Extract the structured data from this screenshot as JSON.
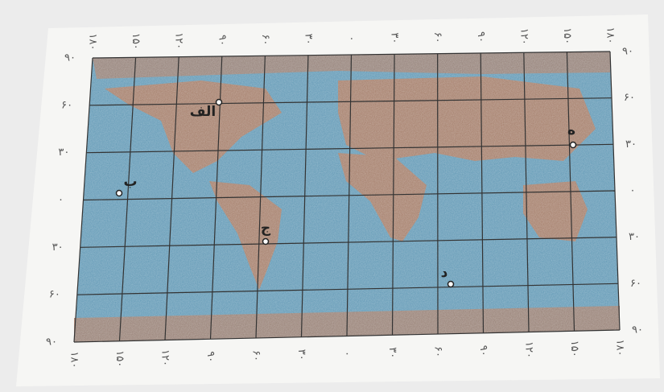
{
  "map": {
    "top_labels": [
      "۱۸۰",
      "۱۵۰",
      "۱۲۰",
      "۹۰",
      "۶۰",
      "۳۰",
      "۰",
      "۳۰",
      "۶۰",
      "۹۰",
      "۱۲۰",
      "۱۵۰",
      "۱۸۰"
    ],
    "bottom_labels": [
      "۱۸۰",
      "۱۵۰",
      "۱۲۰",
      "۹۰",
      "۶۰",
      "۳۰",
      "۰",
      "۳۰",
      "۶۰",
      "۹۰",
      "۱۲۰",
      "۱۵۰",
      "۱۸۰"
    ],
    "left_labels": [
      "۹۰",
      "۶۰",
      "۳۰",
      "۰",
      "۳۰",
      "۶۰",
      "۹۰"
    ],
    "right_labels": [
      "۹۰",
      "۶۰",
      "۳۰",
      "۰",
      "۳۰",
      "۶۰",
      "۹۰"
    ],
    "points": [
      "الف",
      "ب",
      "ج",
      "د",
      "ه"
    ]
  }
}
